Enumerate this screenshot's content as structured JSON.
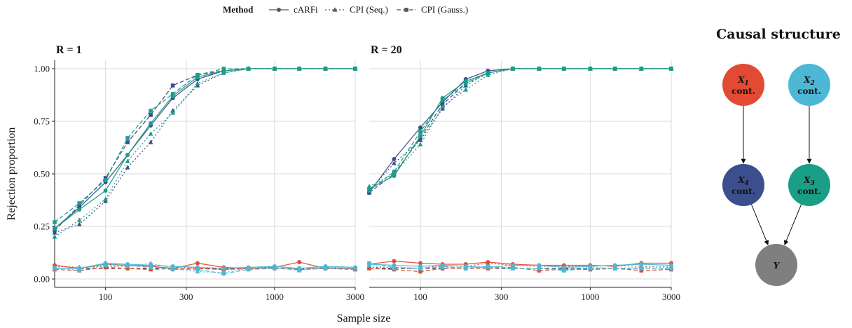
{
  "legend": {
    "title": "Method",
    "items": [
      {
        "label": "cARFi",
        "dash": "",
        "shape": "circle"
      },
      {
        "label": "CPI (Seq.)",
        "dash": "2,3",
        "shape": "triangle"
      },
      {
        "label": "CPI (Gauss.)",
        "dash": "6,3",
        "shape": "square"
      }
    ]
  },
  "colors": {
    "X1": "#e34a33",
    "X2": "#4db8d6",
    "X3": "#1a9e86",
    "X4": "#3b4f8c",
    "Y": "#7f7f7f",
    "alpha_line": "#000000",
    "grid": "#d9d9d9"
  },
  "chart_data": {
    "type": "line",
    "xlabel": "Sample size",
    "ylabel": "Rejection proportion",
    "x_scale": "log",
    "xlim": [
      50,
      3000
    ],
    "ylim": [
      0,
      1
    ],
    "x_ticks": [
      100,
      300,
      1000,
      3000
    ],
    "y_ticks": [
      0,
      0.25,
      0.5,
      0.75,
      1
    ],
    "y_tick_labels": [
      "0.00",
      "0.25",
      "0.50",
      "0.75",
      "1.00"
    ],
    "reference_line": 0.05,
    "x": [
      50,
      70,
      100,
      135,
      185,
      250,
      350,
      500,
      700,
      1000,
      1400,
      2000,
      3000
    ],
    "panels": [
      {
        "title": "R = 1",
        "series": [
          {
            "variable": "X4",
            "method": "cARFi",
            "values": [
              0.24,
              0.34,
              0.46,
              0.59,
              0.73,
              0.86,
              0.95,
              0.99,
              1,
              1,
              1,
              1,
              1
            ]
          },
          {
            "variable": "X4",
            "method": "CPI (Seq.)",
            "values": [
              0.22,
              0.26,
              0.37,
              0.53,
              0.65,
              0.8,
              0.92,
              0.98,
              1,
              1,
              1,
              1,
              1
            ]
          },
          {
            "variable": "X4",
            "method": "CPI (Gauss.)",
            "values": [
              0.23,
              0.35,
              0.48,
              0.65,
              0.78,
              0.92,
              0.97,
              0.99,
              1,
              1,
              1,
              1,
              1
            ]
          },
          {
            "variable": "X3",
            "method": "cARFi",
            "values": [
              0.24,
              0.33,
              0.42,
              0.59,
              0.74,
              0.87,
              0.96,
              0.99,
              1,
              1,
              1,
              1,
              1
            ]
          },
          {
            "variable": "X3",
            "method": "CPI (Seq.)",
            "values": [
              0.2,
              0.28,
              0.38,
              0.56,
              0.69,
              0.79,
              0.93,
              0.98,
              1,
              1,
              1,
              1,
              1
            ]
          },
          {
            "variable": "X3",
            "method": "CPI (Gauss.)",
            "values": [
              0.27,
              0.36,
              0.47,
              0.67,
              0.8,
              0.88,
              0.97,
              1,
              1,
              1,
              1,
              1,
              1
            ]
          },
          {
            "variable": "X1",
            "method": "cARFi",
            "values": [
              0.065,
              0.05,
              0.07,
              0.065,
              0.06,
              0.05,
              0.075,
              0.055,
              0.05,
              0.055,
              0.08,
              0.05,
              0.05
            ]
          },
          {
            "variable": "X1",
            "method": "CPI (Seq.)",
            "values": [
              0.06,
              0.055,
              0.06,
              0.06,
              0.065,
              0.06,
              0.05,
              0.045,
              0.05,
              0.06,
              0.045,
              0.055,
              0.05
            ]
          },
          {
            "variable": "X1",
            "method": "CPI (Gauss.)",
            "values": [
              0.045,
              0.04,
              0.055,
              0.05,
              0.045,
              0.05,
              0.05,
              0.045,
              0.05,
              0.05,
              0.045,
              0.05,
              0.045
            ]
          },
          {
            "variable": "X2",
            "method": "cARFi",
            "values": [
              0.05,
              0.05,
              0.075,
              0.07,
              0.065,
              0.06,
              0.055,
              0.05,
              0.055,
              0.06,
              0.05,
              0.06,
              0.055
            ]
          },
          {
            "variable": "X2",
            "method": "CPI (Seq.)",
            "values": [
              0.055,
              0.04,
              0.065,
              0.06,
              0.075,
              0.05,
              0.035,
              0.03,
              0.05,
              0.055,
              0.04,
              0.055,
              0.05
            ]
          },
          {
            "variable": "X2",
            "method": "CPI (Gauss.)",
            "values": [
              0.05,
              0.05,
              0.07,
              0.065,
              0.055,
              0.045,
              0.045,
              0.025,
              0.045,
              0.05,
              0.05,
              0.05,
              0.05
            ]
          }
        ]
      },
      {
        "title": "R = 20",
        "series": [
          {
            "variable": "X4",
            "method": "cARFi",
            "values": [
              0.41,
              0.57,
              0.72,
              0.84,
              0.95,
              0.99,
              1,
              1,
              1,
              1,
              1,
              1,
              1
            ]
          },
          {
            "variable": "X4",
            "method": "CPI (Seq.)",
            "values": [
              0.42,
              0.55,
              0.66,
              0.81,
              0.92,
              0.98,
              1,
              1,
              1,
              1,
              1,
              1,
              1
            ]
          },
          {
            "variable": "X4",
            "method": "CPI (Gauss.)",
            "values": [
              0.41,
              0.5,
              0.67,
              0.83,
              0.93,
              0.98,
              1,
              1,
              1,
              1,
              1,
              1,
              1
            ]
          },
          {
            "variable": "X3",
            "method": "cARFi",
            "values": [
              0.43,
              0.49,
              0.68,
              0.86,
              0.94,
              0.98,
              1,
              1,
              1,
              1,
              1,
              1,
              1
            ]
          },
          {
            "variable": "X3",
            "method": "CPI (Seq.)",
            "values": [
              0.44,
              0.5,
              0.64,
              0.82,
              0.9,
              0.97,
              1,
              1,
              1,
              1,
              1,
              1,
              1
            ]
          },
          {
            "variable": "X3",
            "method": "CPI (Gauss.)",
            "values": [
              0.42,
              0.51,
              0.7,
              0.85,
              0.93,
              0.98,
              1,
              1,
              1,
              1,
              1,
              1,
              1
            ]
          },
          {
            "variable": "X1",
            "method": "cARFi",
            "values": [
              0.07,
              0.085,
              0.075,
              0.07,
              0.07,
              0.08,
              0.07,
              0.065,
              0.065,
              0.065,
              0.06,
              0.075,
              0.075
            ]
          },
          {
            "variable": "X1",
            "method": "CPI (Seq.)",
            "values": [
              0.055,
              0.055,
              0.05,
              0.065,
              0.06,
              0.075,
              0.065,
              0.06,
              0.06,
              0.06,
              0.065,
              0.06,
              0.055
            ]
          },
          {
            "variable": "X1",
            "method": "CPI (Gauss.)",
            "values": [
              0.05,
              0.045,
              0.035,
              0.05,
              0.05,
              0.05,
              0.055,
              0.04,
              0.045,
              0.045,
              0.05,
              0.04,
              0.045
            ]
          },
          {
            "variable": "X2",
            "method": "cARFi",
            "values": [
              0.07,
              0.065,
              0.06,
              0.065,
              0.06,
              0.055,
              0.065,
              0.065,
              0.055,
              0.06,
              0.065,
              0.07,
              0.065
            ]
          },
          {
            "variable": "X2",
            "method": "CPI (Seq.)",
            "values": [
              0.065,
              0.05,
              0.05,
              0.055,
              0.055,
              0.055,
              0.05,
              0.05,
              0.045,
              0.055,
              0.05,
              0.055,
              0.06
            ]
          },
          {
            "variable": "X2",
            "method": "CPI (Gauss.)",
            "values": [
              0.075,
              0.055,
              0.05,
              0.06,
              0.05,
              0.06,
              0.05,
              0.05,
              0.04,
              0.05,
              0.05,
              0.05,
              0.05
            ]
          }
        ]
      }
    ]
  },
  "dag": {
    "title": "Causal structure",
    "nodes": [
      {
        "id": "X1",
        "var": "X",
        "sub": "1",
        "type": "cont."
      },
      {
        "id": "X2",
        "var": "X",
        "sub": "2",
        "type": "cont."
      },
      {
        "id": "X4",
        "var": "X",
        "sub": "4",
        "type": "cont."
      },
      {
        "id": "X3",
        "var": "X",
        "sub": "3",
        "type": "cont."
      },
      {
        "id": "Y",
        "var": "Y",
        "sub": "",
        "type": ""
      }
    ],
    "edges": [
      [
        "X1",
        "X4"
      ],
      [
        "X2",
        "X3"
      ],
      [
        "X4",
        "Y"
      ],
      [
        "X3",
        "Y"
      ]
    ]
  }
}
